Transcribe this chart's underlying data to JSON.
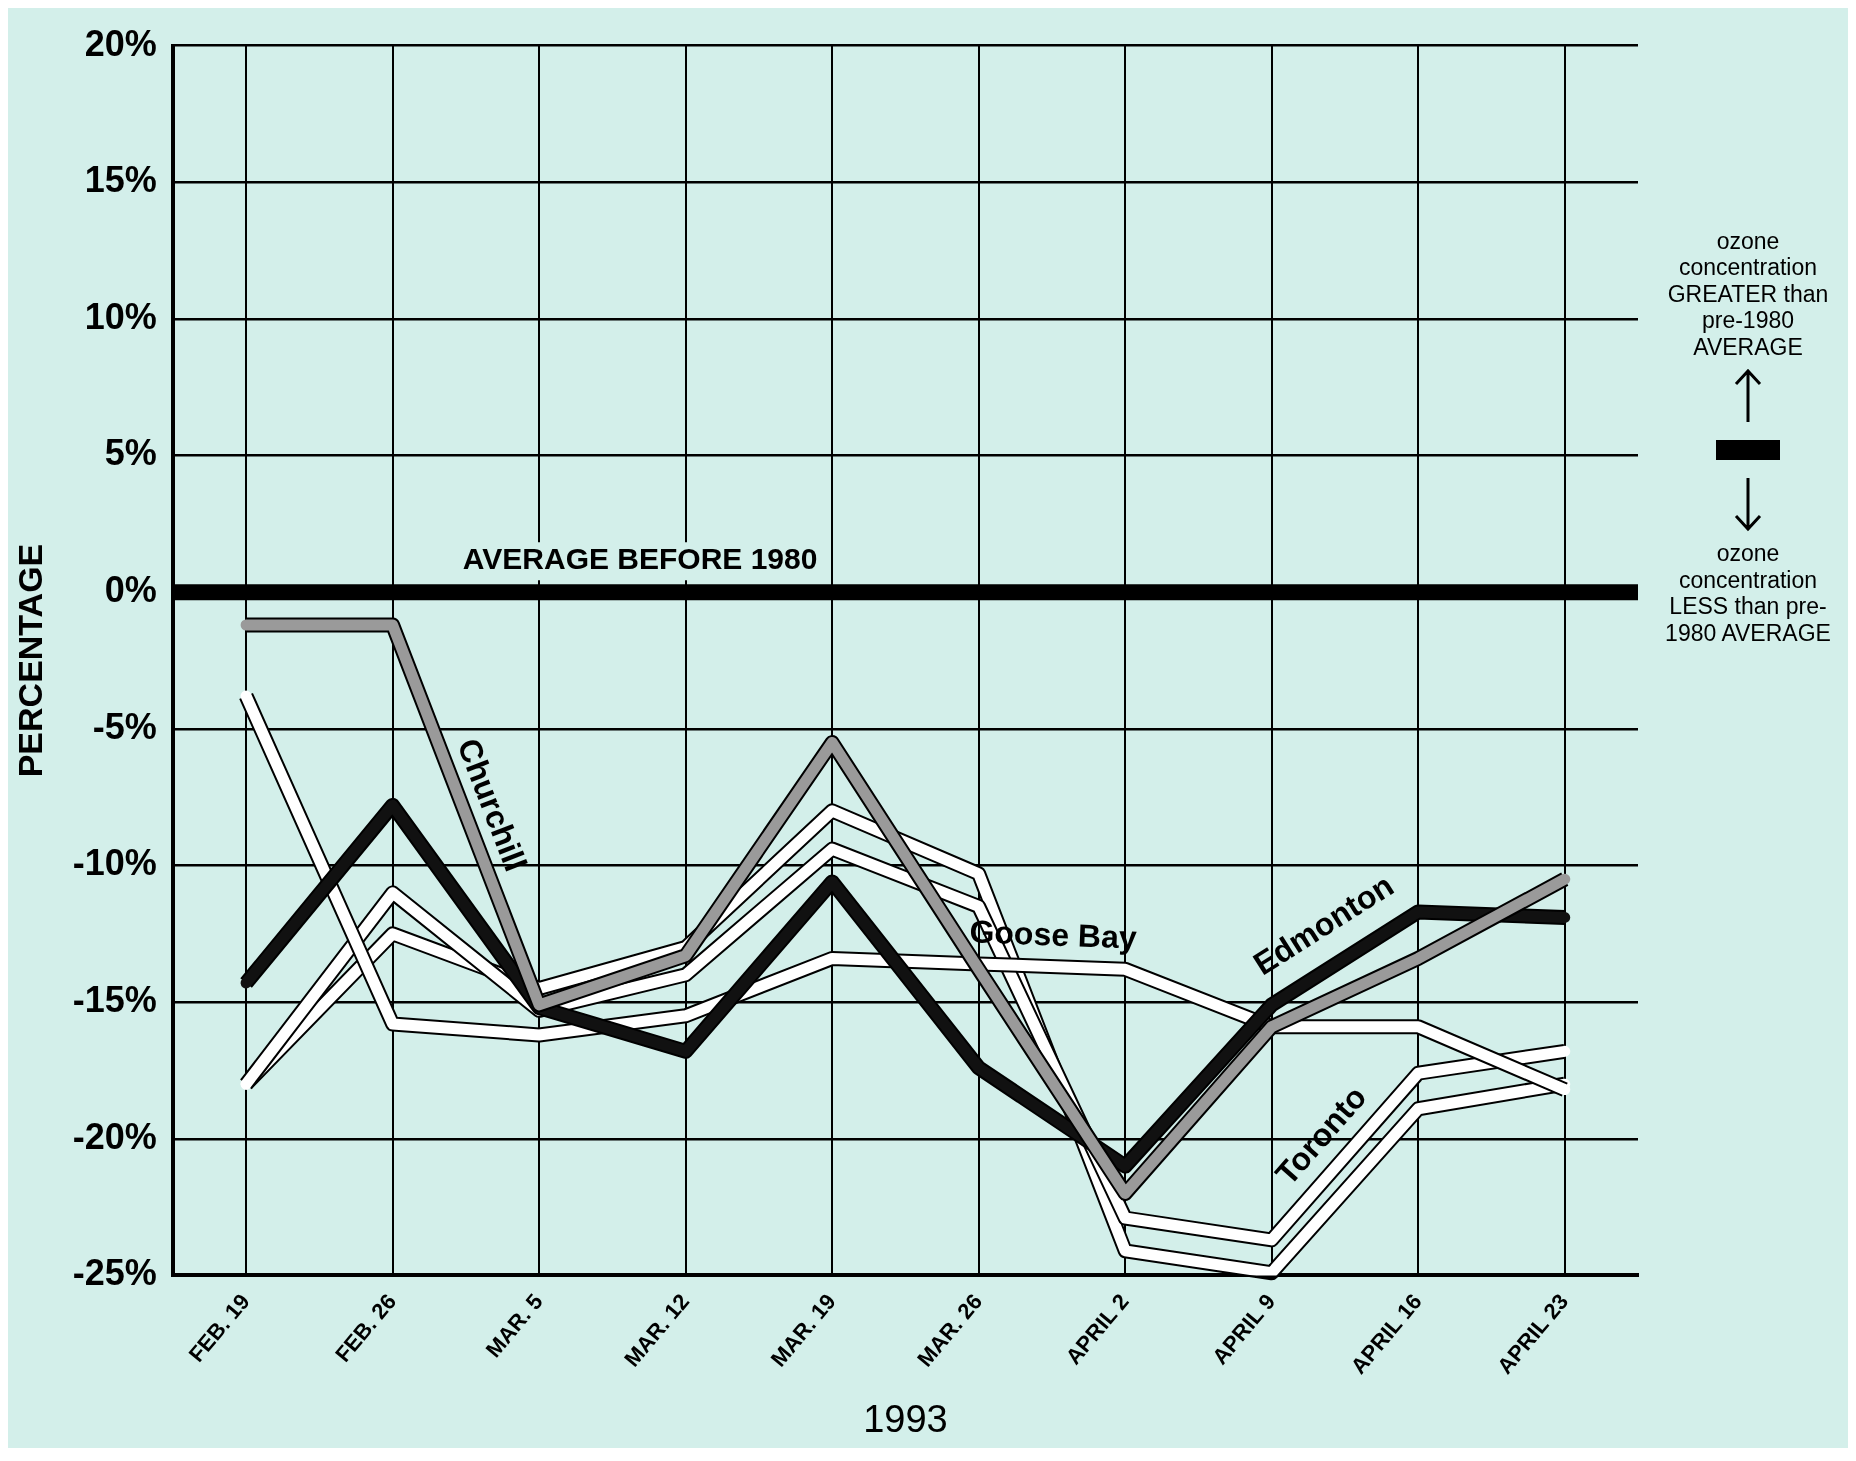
{
  "chart_data": {
    "type": "line",
    "xlabel": "1993",
    "ylabel": "PERCENTAGE",
    "categories": [
      "FEB. 19",
      "FEB. 26",
      "MAR. 5",
      "MAR. 12",
      "MAR. 19",
      "MAR. 26",
      "APRIL 2",
      "APRIL 9",
      "APRIL 16",
      "APRIL 23"
    ],
    "series": [
      {
        "name": "Churchill",
        "color": "#9a9a9a",
        "values": [
          -1.2,
          -1.2,
          -15.1,
          -13.3,
          -5.5,
          -13.8,
          -22.0,
          -15.9,
          -13.4,
          -10.5
        ]
      },
      {
        "name": "Edmonton",
        "color": "#111111",
        "values": [
          -14.3,
          -7.8,
          -15.2,
          -16.8,
          -10.6,
          -17.4,
          -21.0,
          -15.1,
          -11.7,
          -11.9
        ]
      },
      {
        "name": "Goose Bay",
        "color": "#ffffff",
        "values": [
          -3.8,
          -15.8,
          -16.2,
          -15.5,
          -13.4,
          -13.6,
          -13.8,
          -15.9,
          -15.9,
          -18.2
        ]
      },
      {
        "name": "Toronto",
        "color": "#ffffff",
        "values": [
          -18.0,
          -11.0,
          -15.3,
          -14.0,
          -9.4,
          -11.5,
          -22.9,
          -23.7,
          -17.6,
          -16.8
        ]
      },
      {
        "color": "#ffffff",
        "values": [
          -18.0,
          -12.5,
          -14.5,
          -13.0,
          -8.0,
          -10.3,
          -24.1,
          -24.9,
          -18.9,
          -18.0
        ]
      }
    ],
    "ylim": [
      -25,
      20
    ],
    "yticks": [
      {
        "value": 20,
        "label": "20%"
      },
      {
        "value": 15,
        "label": "15%"
      },
      {
        "value": 10,
        "label": "10%"
      },
      {
        "value": 5,
        "label": "5%"
      },
      {
        "value": 0,
        "label": "0%"
      },
      {
        "value": -5,
        "label": "-5%"
      },
      {
        "value": -10,
        "label": "-10%"
      },
      {
        "value": -15,
        "label": "-15%"
      },
      {
        "value": -20,
        "label": "-20%"
      },
      {
        "value": -25,
        "label": "-25%"
      }
    ],
    "ref_lines": [
      {
        "axis": "y",
        "value": 0,
        "label": "AVERAGE BEFORE 1980",
        "color": "#000000"
      }
    ],
    "annotations": [
      "ozone concentration GREATER than pre-1980 AVERAGE",
      "ozone concentration LESS than pre-1980 AVERAGE"
    ],
    "grid": true,
    "legend": false,
    "marker": "none",
    "line_style": "solid"
  }
}
